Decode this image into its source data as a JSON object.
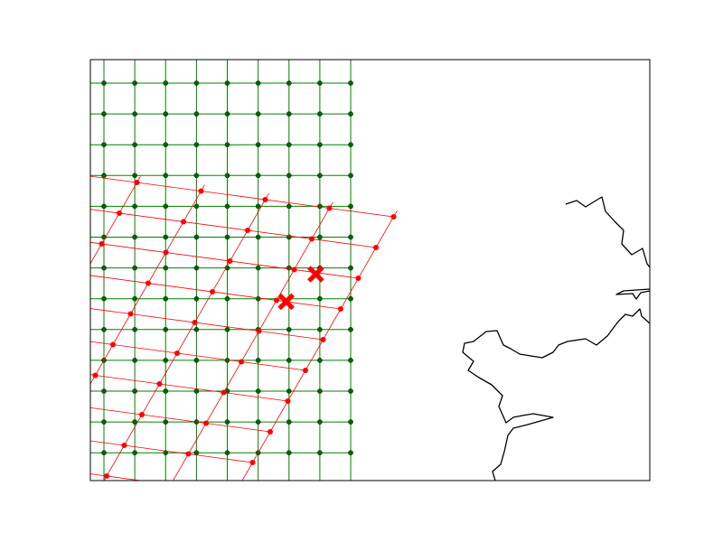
{
  "figure": {
    "type": "map",
    "frame_color": "#000000",
    "background": "#ffffff"
  },
  "chart_data": {
    "type": "scatter",
    "axes_visible": false,
    "regular_grid": {
      "color": "#008000",
      "point_color": "#006400",
      "columns": 9,
      "rows": 13
    },
    "rotated_grid": {
      "color": "#ff0000",
      "point_color": "#ff0000",
      "columns": 5,
      "rows": 9
    },
    "highlighted_points": {
      "marker": "x-mark",
      "color": "#ff0000",
      "count": 2
    },
    "coastline": {
      "color": "#000000"
    }
  }
}
